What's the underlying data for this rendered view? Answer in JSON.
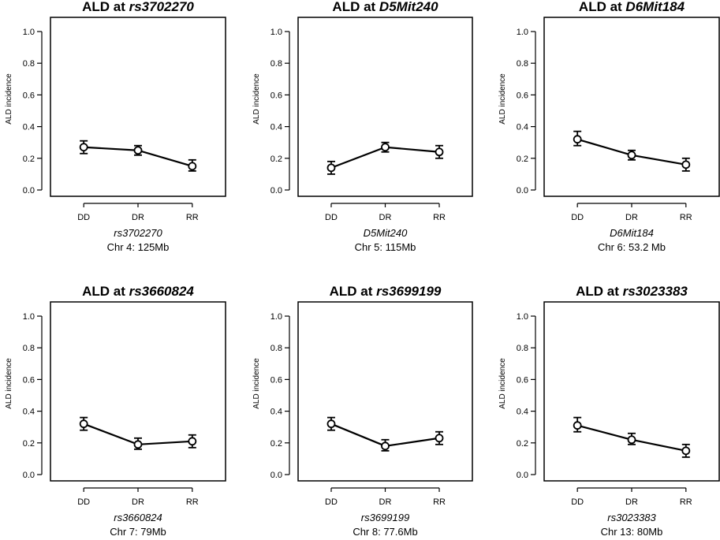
{
  "chart_data": [
    {
      "type": "line",
      "title_prefix": "ALD at ",
      "title_marker": "rs3702270",
      "xlabel_marker": "rs3702270",
      "xlabel_location": "Chr 4: 125Mb",
      "ylabel": "ALD incidence",
      "categories": [
        "DD",
        "DR",
        "RR"
      ],
      "ylim": [
        0,
        1.0
      ],
      "yticks": [
        "0.0",
        "0.2",
        "0.4",
        "0.6",
        "0.8",
        "1.0"
      ],
      "series": [
        {
          "name": "ALD incidence",
          "values": [
            0.27,
            0.25,
            0.15
          ],
          "err_low": [
            0.23,
            0.22,
            0.12
          ],
          "err_high": [
            0.31,
            0.28,
            0.19
          ]
        }
      ]
    },
    {
      "type": "line",
      "title_prefix": "ALD at ",
      "title_marker": "D5Mit240",
      "xlabel_marker": "D5Mit240",
      "xlabel_location": "Chr 5: 115Mb",
      "ylabel": "ALD incidence",
      "categories": [
        "DD",
        "DR",
        "RR"
      ],
      "ylim": [
        0,
        1.0
      ],
      "yticks": [
        "0.0",
        "0.2",
        "0.4",
        "0.6",
        "0.8",
        "1.0"
      ],
      "series": [
        {
          "name": "ALD incidence",
          "values": [
            0.14,
            0.27,
            0.24
          ],
          "err_low": [
            0.1,
            0.24,
            0.2
          ],
          "err_high": [
            0.18,
            0.3,
            0.28
          ]
        }
      ]
    },
    {
      "type": "line",
      "title_prefix": "ALD at ",
      "title_marker": "D6Mit184",
      "xlabel_marker": "D6Mit184",
      "xlabel_location": "Chr 6: 53.2 Mb",
      "ylabel": "ALD incidence",
      "categories": [
        "DD",
        "DR",
        "RR"
      ],
      "ylim": [
        0,
        1.0
      ],
      "yticks": [
        "0.0",
        "0.2",
        "0.4",
        "0.6",
        "0.8",
        "1.0"
      ],
      "series": [
        {
          "name": "ALD incidence",
          "values": [
            0.32,
            0.22,
            0.16
          ],
          "err_low": [
            0.28,
            0.19,
            0.12
          ],
          "err_high": [
            0.37,
            0.25,
            0.2
          ]
        }
      ]
    },
    {
      "type": "line",
      "title_prefix": "ALD at ",
      "title_marker": "rs3660824",
      "xlabel_marker": "rs3660824",
      "xlabel_location": "Chr 7: 79Mb",
      "ylabel": "ALD incidence",
      "categories": [
        "DD",
        "DR",
        "RR"
      ],
      "ylim": [
        0,
        1.0
      ],
      "yticks": [
        "0.0",
        "0.2",
        "0.4",
        "0.6",
        "0.8",
        "1.0"
      ],
      "series": [
        {
          "name": "ALD incidence",
          "values": [
            0.32,
            0.19,
            0.21
          ],
          "err_low": [
            0.28,
            0.16,
            0.17
          ],
          "err_high": [
            0.36,
            0.23,
            0.25
          ]
        }
      ]
    },
    {
      "type": "line",
      "title_prefix": "ALD at ",
      "title_marker": "rs3699199",
      "xlabel_marker": "rs3699199",
      "xlabel_location": "Chr 8: 77.6Mb",
      "ylabel": "ALD incidence",
      "categories": [
        "DD",
        "DR",
        "RR"
      ],
      "ylim": [
        0,
        1.0
      ],
      "yticks": [
        "0.0",
        "0.2",
        "0.4",
        "0.6",
        "0.8",
        "1.0"
      ],
      "series": [
        {
          "name": "ALD incidence",
          "values": [
            0.32,
            0.18,
            0.23
          ],
          "err_low": [
            0.28,
            0.15,
            0.19
          ],
          "err_high": [
            0.36,
            0.22,
            0.27
          ]
        }
      ]
    },
    {
      "type": "line",
      "title_prefix": "ALD at ",
      "title_marker": "rs3023383",
      "xlabel_marker": "rs3023383",
      "xlabel_location": "Chr 13: 80Mb",
      "ylabel": "ALD incidence",
      "categories": [
        "DD",
        "DR",
        "RR"
      ],
      "ylim": [
        0,
        1.0
      ],
      "yticks": [
        "0.0",
        "0.2",
        "0.4",
        "0.6",
        "0.8",
        "1.0"
      ],
      "series": [
        {
          "name": "ALD incidence",
          "values": [
            0.31,
            0.22,
            0.15
          ],
          "err_low": [
            0.27,
            0.19,
            0.11
          ],
          "err_high": [
            0.36,
            0.26,
            0.19
          ]
        }
      ]
    }
  ]
}
